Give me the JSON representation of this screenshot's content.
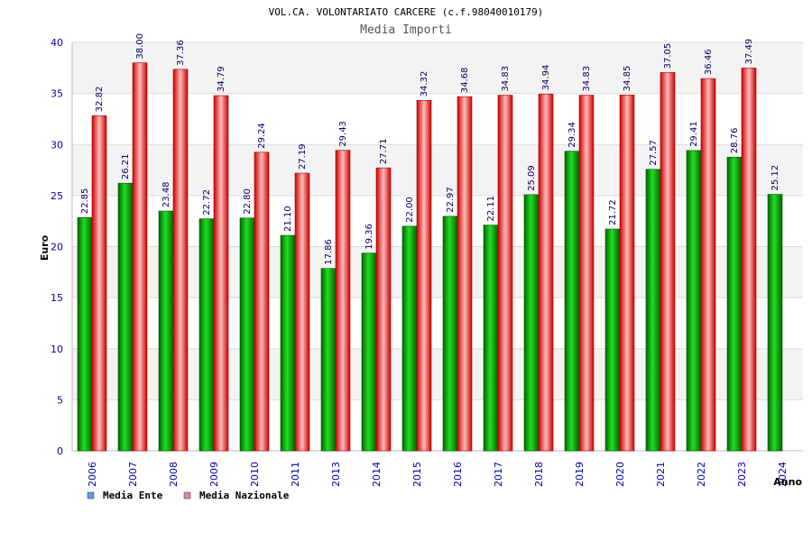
{
  "chart_data": {
    "type": "bar",
    "title": "VOL.CA. VOLONTARIATO CARCERE (c.f.98040010179)",
    "subtitle": "Media Importi",
    "xlabel": "Anno",
    "ylabel": "Euro",
    "ylim": [
      0,
      40
    ],
    "yticks": [
      "0",
      "5",
      "10",
      "15",
      "20",
      "25",
      "30",
      "35",
      "40"
    ],
    "grid": true,
    "legend_position": "bottom-left",
    "categories": [
      "2006",
      "2007",
      "2008",
      "2009",
      "2010",
      "2011",
      "2013",
      "2014",
      "2015",
      "2016",
      "2017",
      "2018",
      "2019",
      "2020",
      "2021",
      "2022",
      "2023",
      "2024"
    ],
    "series": [
      {
        "name": "Media Ente",
        "color": "#00aa00",
        "legend_color": "#6699ee",
        "values": [
          22.85,
          26.21,
          23.48,
          22.72,
          22.8,
          21.1,
          17.86,
          19.36,
          22.0,
          22.97,
          22.11,
          25.09,
          29.34,
          21.72,
          27.57,
          29.41,
          28.76,
          25.12
        ],
        "labels": [
          "22.85",
          "26.21",
          "23.48",
          "22.72",
          "22.80",
          "21.10",
          "17.86",
          "19.36",
          "22.00",
          "22.97",
          "22.11",
          "25.09",
          "29.34",
          "21.72",
          "27.57",
          "29.41",
          "28.76",
          "25.12"
        ]
      },
      {
        "name": "Media Nazionale",
        "color": "#ee1111",
        "legend_color": "#dd88aa",
        "values": [
          32.82,
          38.0,
          37.36,
          34.79,
          29.24,
          27.19,
          29.43,
          27.71,
          34.32,
          34.68,
          34.83,
          34.94,
          34.83,
          34.85,
          37.05,
          36.46,
          37.49,
          null
        ],
        "labels": [
          "32.82",
          "38.00",
          "37.36",
          "34.79",
          "29.24",
          "27.19",
          "29.43",
          "27.71",
          "34.32",
          "34.68",
          "34.83",
          "34.94",
          "34.83",
          "34.85",
          "37.05",
          "36.46",
          "37.49",
          ""
        ]
      }
    ]
  }
}
